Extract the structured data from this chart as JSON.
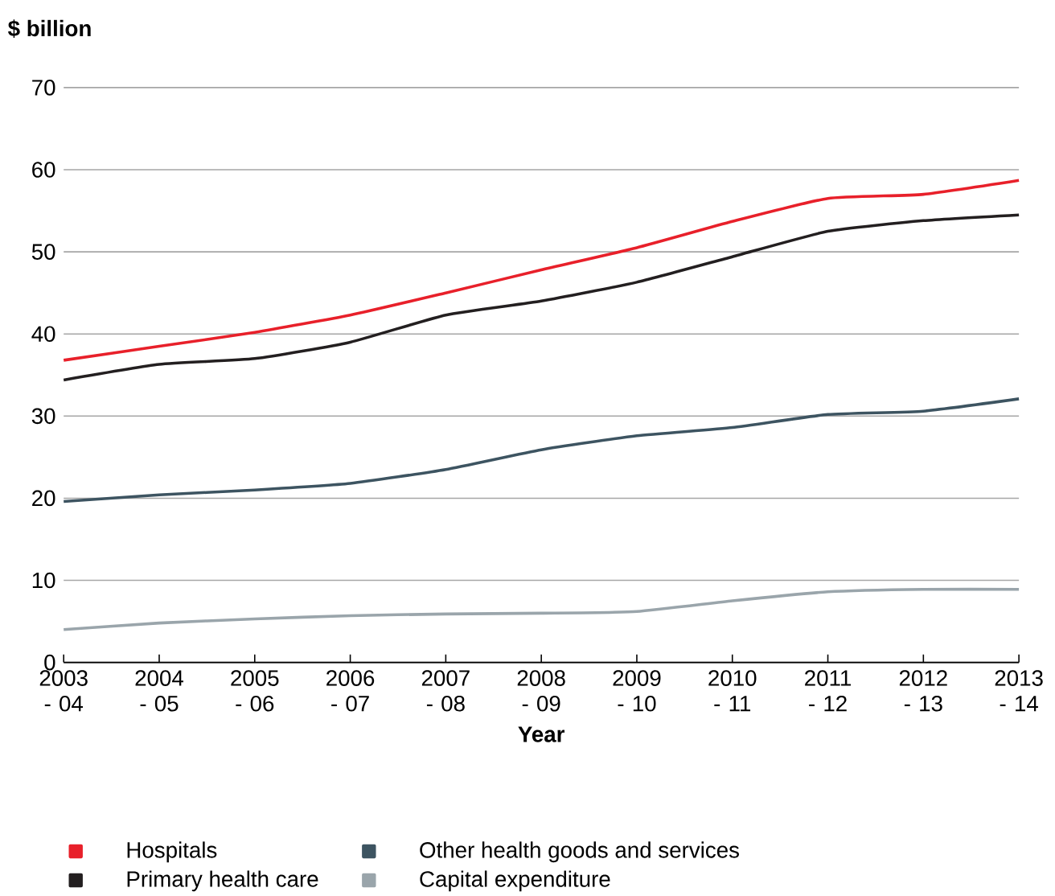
{
  "chart_data": {
    "type": "line",
    "ylabel": "$ billion",
    "xlabel": "Year",
    "categories": [
      "2003 - 04",
      "2004 - 05",
      "2005 - 06",
      "2006 - 07",
      "2007 - 08",
      "2008 - 09",
      "2009 - 10",
      "2010 - 11",
      "2011 - 12",
      "2012 - 13",
      "2013 - 14"
    ],
    "ylim": [
      0,
      70
    ],
    "yticks": [
      0,
      10,
      20,
      30,
      40,
      50,
      60,
      70
    ],
    "grid": "y",
    "legend": "bottom",
    "marker": "none",
    "line_style": "solid",
    "series": [
      {
        "name": "Hospitals",
        "color": "#e8202a",
        "values": [
          36.8,
          38.5,
          40.2,
          42.3,
          45,
          47.8,
          50.5,
          53.7,
          56.5,
          57,
          58.7
        ]
      },
      {
        "name": "Primary health care",
        "color": "#231f20",
        "values": [
          34.4,
          36.3,
          37,
          39,
          42.3,
          44,
          46.3,
          49.4,
          52.5,
          53.8,
          54.5
        ]
      },
      {
        "name": "Other health goods and services",
        "color": "#3d5461",
        "values": [
          19.6,
          20.4,
          21,
          21.8,
          23.5,
          25.9,
          27.6,
          28.6,
          30.2,
          30.6,
          32.1
        ]
      },
      {
        "name": "Capital expenditure",
        "color": "#9aa5ab",
        "values": [
          4,
          4.8,
          5.3,
          5.7,
          5.9,
          6,
          6.2,
          7.5,
          8.6,
          8.9,
          8.9
        ]
      }
    ]
  }
}
